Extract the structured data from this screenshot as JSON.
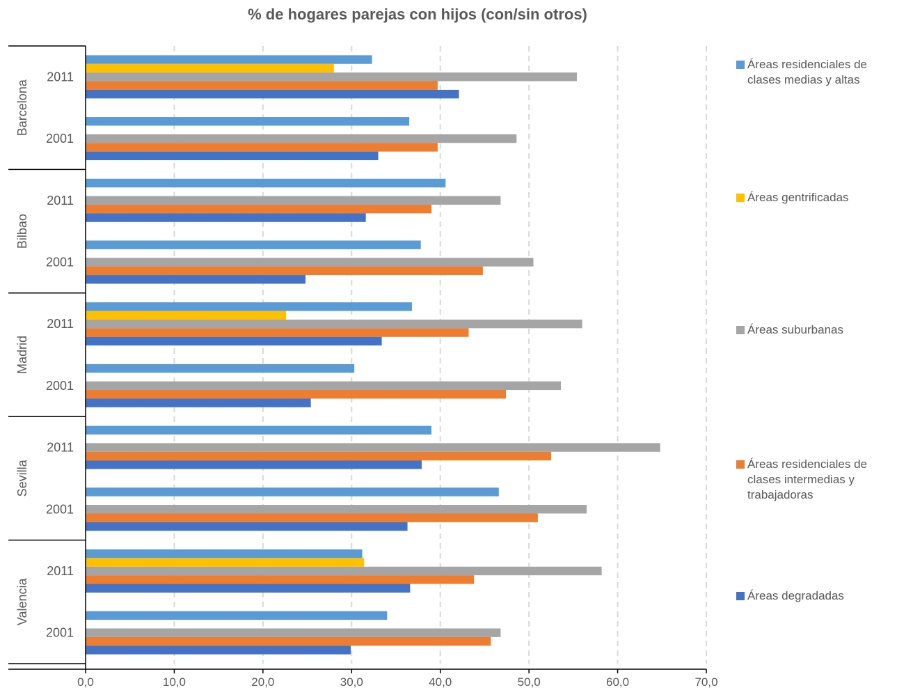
{
  "chart_data": {
    "type": "bar",
    "orientation": "horizontal",
    "title": "% de hogares parejas con hijos (con/sin otros)",
    "xlim": [
      0,
      70
    ],
    "x_ticks": [
      "0,0",
      "10,0",
      "20,0",
      "30,0",
      "40,0",
      "50,0",
      "60,0",
      "70,0"
    ],
    "grid": "vertical dashed",
    "legend_position": "right",
    "groups": [
      {
        "city": "Barcelona",
        "years": [
          {
            "year": "2011",
            "values": {
              "medias_altas": 32.3,
              "gentrificadas": 28.0,
              "suburbanas": 55.4,
              "intermedias": 39.7,
              "degradadas": 42.1
            }
          },
          {
            "year": "2001",
            "values": {
              "medias_altas": 36.5,
              "gentrificadas": null,
              "suburbanas": 48.6,
              "intermedias": 39.7,
              "degradadas": 33.0
            }
          }
        ]
      },
      {
        "city": "Bilbao",
        "years": [
          {
            "year": "2011",
            "values": {
              "medias_altas": 40.6,
              "gentrificadas": null,
              "suburbanas": 46.8,
              "intermedias": 39.0,
              "degradadas": 31.6
            }
          },
          {
            "year": "2001",
            "values": {
              "medias_altas": 37.8,
              "gentrificadas": null,
              "suburbanas": 50.5,
              "intermedias": 44.8,
              "degradadas": 24.8
            }
          }
        ]
      },
      {
        "city": "Madrid",
        "years": [
          {
            "year": "2011",
            "values": {
              "medias_altas": 36.8,
              "gentrificadas": 22.6,
              "suburbanas": 56.0,
              "intermedias": 43.2,
              "degradadas": 33.4
            }
          },
          {
            "year": "2001",
            "values": {
              "medias_altas": 30.3,
              "gentrificadas": null,
              "suburbanas": 53.6,
              "intermedias": 47.4,
              "degradadas": 25.4
            }
          }
        ]
      },
      {
        "city": "Sevilla",
        "years": [
          {
            "year": "2011",
            "values": {
              "medias_altas": 39.0,
              "gentrificadas": null,
              "suburbanas": 64.8,
              "intermedias": 52.5,
              "degradadas": 37.9
            }
          },
          {
            "year": "2001",
            "values": {
              "medias_altas": 46.6,
              "gentrificadas": null,
              "suburbanas": 56.5,
              "intermedias": 51.0,
              "degradadas": 36.3
            }
          }
        ]
      },
      {
        "city": "Valencia",
        "years": [
          {
            "year": "2011",
            "values": {
              "medias_altas": 31.2,
              "gentrificadas": 31.4,
              "suburbanas": 58.2,
              "intermedias": 43.8,
              "degradadas": 36.6
            }
          },
          {
            "year": "2001",
            "values": {
              "medias_altas": 34.0,
              "gentrificadas": null,
              "suburbanas": 46.8,
              "intermedias": 45.7,
              "degradadas": 29.9
            }
          }
        ]
      }
    ],
    "series": [
      {
        "key": "medias_altas",
        "name": "Áreas residenciales de\nclases medias y altas",
        "color": "#5B9BD5"
      },
      {
        "key": "gentrificadas",
        "name": "Áreas gentrificadas",
        "color": "#FFC000"
      },
      {
        "key": "suburbanas",
        "name": "Áreas suburbanas",
        "color": "#A5A5A5"
      },
      {
        "key": "intermedias",
        "name": "Áreas residenciales de\nclases intermedias y\ntrabajadoras",
        "color": "#ED7D31"
      },
      {
        "key": "degradadas",
        "name": "Áreas degradadas",
        "color": "#4472C4"
      }
    ]
  }
}
